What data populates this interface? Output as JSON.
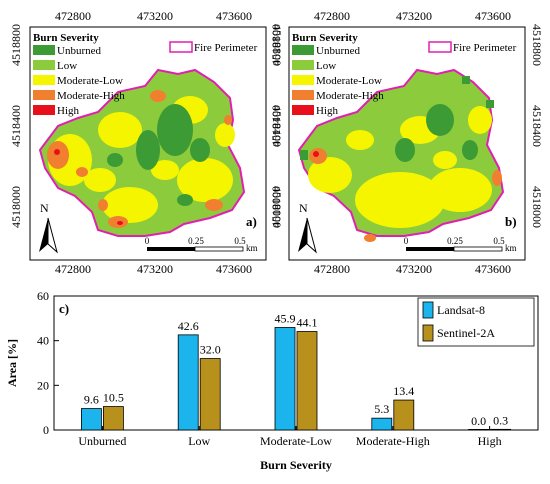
{
  "maps": [
    {
      "panel_label": "a)",
      "top_ticks": [
        "472800",
        "473200",
        "473600"
      ],
      "bottom_ticks": [
        "472800",
        "473200",
        "473600"
      ],
      "left_ticks": [
        "4518800",
        "4518400",
        "4518000"
      ],
      "right_ticks": [
        "4518800",
        "4518400",
        "4518000"
      ]
    },
    {
      "panel_label": "b)",
      "top_ticks": [
        "472800",
        "473200",
        "473600"
      ],
      "bottom_ticks": [
        "472800",
        "473200",
        "473600"
      ],
      "left_ticks": [
        "4518800",
        "4518400",
        "4518000"
      ],
      "right_ticks": [
        "4518800",
        "4518400",
        "4518000"
      ]
    }
  ],
  "legend": {
    "title": "Burn Severity",
    "items": [
      {
        "label": "Unburned",
        "color": "#3d9b35"
      },
      {
        "label": "Low",
        "color": "#8ccc3c"
      },
      {
        "label": "Moderate-Low",
        "color": "#f5f500"
      },
      {
        "label": "Moderate-High",
        "color": "#f08030"
      },
      {
        "label": "High",
        "color": "#e8101a"
      }
    ],
    "perimeter_label": "Fire Perimeter",
    "perimeter_color": "#e020b0"
  },
  "north_label": "N",
  "scalebar": {
    "labels": [
      "0",
      "0.25",
      "0.5"
    ],
    "unit": "km"
  },
  "chart_data": {
    "type": "bar",
    "panel_label": "c)",
    "categories": [
      "Unburned",
      "Low",
      "Moderate-Low",
      "Moderate-High",
      "High"
    ],
    "series": [
      {
        "name": "Landsat-8",
        "values": [
          9.6,
          42.6,
          45.9,
          5.3,
          0.0
        ],
        "labels": [
          "9.6",
          "42.6",
          "45.9",
          "5.3",
          "0.0"
        ],
        "color": "#1cb4ec"
      },
      {
        "name": "Sentinel-2A",
        "values": [
          10.5,
          32.0,
          44.1,
          13.4,
          0.3
        ],
        "labels": [
          "10.5",
          "32.0",
          "44.1",
          "13.4",
          "0.3"
        ],
        "color": "#b8901c"
      }
    ],
    "xlabel": "Burn Severity",
    "ylabel": "Area [%]",
    "ylim": [
      0,
      60
    ],
    "yticks": [
      0,
      20,
      40,
      60
    ],
    "legend_position": "top-right",
    "grid": false
  }
}
